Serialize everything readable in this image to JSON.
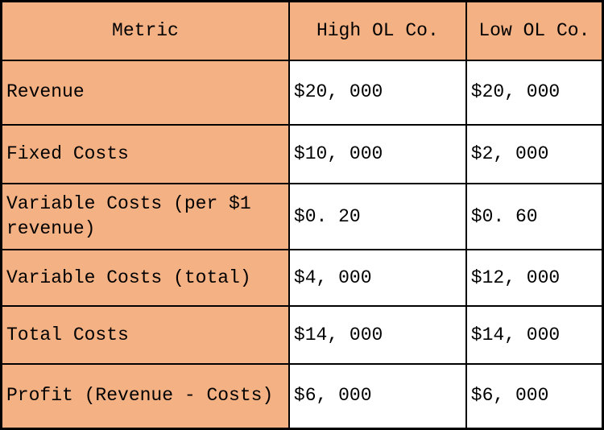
{
  "table": {
    "columns": [
      {
        "label": "Metric"
      },
      {
        "label": "High OL Co."
      },
      {
        "label": "Low OL Co."
      }
    ],
    "rows": [
      {
        "metric": "Revenue",
        "high": "$20, 000",
        "low": "$20, 000"
      },
      {
        "metric": "Fixed Costs",
        "high": "$10, 000",
        "low": "$2, 000"
      },
      {
        "metric": "Variable Costs (per $1 revenue)",
        "high": "$0. 20",
        "low": "$0. 60"
      },
      {
        "metric": "Variable Costs (total)",
        "high": "$4, 000",
        "low": "$12, 000"
      },
      {
        "metric": "Total Costs",
        "high": "$14, 000",
        "low": "$14, 000"
      },
      {
        "metric": "Profit (Revenue - Costs)",
        "high": "$6, 000",
        "low": "$6, 000"
      }
    ],
    "colors": {
      "header_bg": "#F4B183",
      "metric_bg": "#F4B183",
      "value_bg": "#FFFFFF",
      "border": "#000000",
      "text": "#000000"
    }
  },
  "chart_data": {
    "type": "table",
    "categories": [
      "Revenue",
      "Fixed Costs",
      "Variable Costs (per $1 revenue)",
      "Variable Costs (total)",
      "Total Costs",
      "Profit (Revenue - Costs)"
    ],
    "series": [
      {
        "name": "High OL Co.",
        "values": [
          20000,
          10000,
          0.2,
          4000,
          14000,
          6000
        ]
      },
      {
        "name": "Low OL Co.",
        "values": [
          20000,
          2000,
          0.6,
          12000,
          14000,
          6000
        ]
      }
    ],
    "title": "",
    "legend_position": "none",
    "grid": true
  }
}
